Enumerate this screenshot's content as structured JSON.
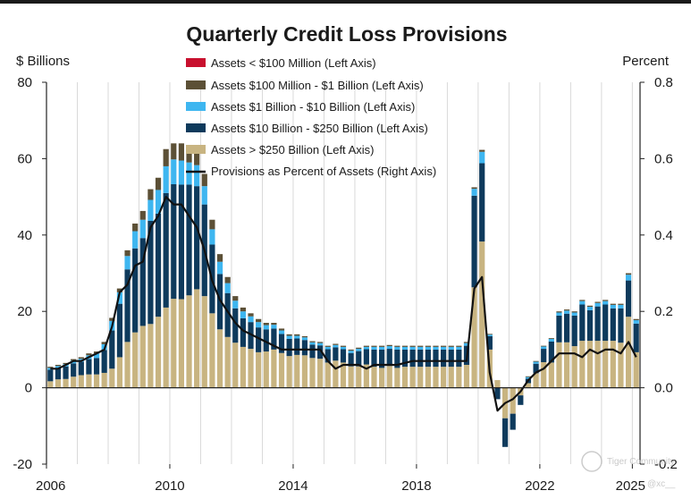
{
  "chart_data": {
    "type": "bar",
    "stacked": true,
    "title": "Quarterly Credit Loss Provisions",
    "ylabel_left": "$ Billions",
    "ylabel_right": "Percent",
    "ylim_left": [
      -20,
      80
    ],
    "ylim_right": [
      -0.2,
      0.8
    ],
    "yticks_left": [
      "80",
      "60",
      "40",
      "20",
      "0",
      "-20"
    ],
    "yticks_right": [
      "0.8",
      "0.6",
      "0.4",
      "0.2",
      "0.0",
      "-0.2"
    ],
    "xticks": [
      "2006",
      "2010",
      "2014",
      "2018",
      "2022",
      "2025"
    ],
    "x_start": "2006 Q1",
    "x_end": "2025 Q1",
    "legend_position": "top-center",
    "colors": {
      "lt100m": "#c8102e",
      "100m_1b": "#5c5036",
      "1b_10b": "#3eb6f0",
      "10b_250b": "#0e3a5c",
      "gt250b": "#c8b481",
      "line": "#111111",
      "grid": "#d9d9d9"
    },
    "series": [
      {
        "key": "lt100m",
        "name": "Assets < $100 Million (Left Axis)",
        "values": [
          0,
          0,
          0,
          0,
          0,
          0,
          0,
          0,
          0,
          0,
          0,
          0,
          0,
          0,
          0,
          0,
          0,
          0,
          0,
          0,
          0,
          0,
          0,
          0,
          0,
          0,
          0,
          0,
          0,
          0,
          0,
          0,
          0,
          0,
          0,
          0,
          0,
          0,
          0,
          0,
          0,
          0,
          0,
          0,
          0,
          0,
          0,
          0,
          0,
          0,
          0,
          0,
          0,
          0,
          0,
          0,
          0,
          0,
          0,
          0,
          0,
          0,
          0,
          0,
          0,
          0,
          0,
          0,
          0,
          0,
          0,
          0,
          0,
          0,
          0,
          0,
          0
        ]
      },
      {
        "key": "100m_1b",
        "name": "Assets  $100 Million - $1 Billion (Left Axis)",
        "values": [
          0.3,
          0.3,
          0.3,
          0.4,
          0.4,
          0.5,
          0.5,
          0.6,
          0.8,
          1,
          1.5,
          2,
          2.3,
          2.8,
          3.2,
          4.5,
          4.2,
          4.5,
          4,
          3.7,
          3.2,
          2.5,
          2,
          1.6,
          1.2,
          1,
          0.8,
          0.8,
          0.6,
          0.5,
          0.5,
          0.4,
          0.4,
          0.3,
          0.3,
          0.3,
          0.3,
          0.3,
          0.3,
          0.3,
          0.3,
          0.3,
          0.3,
          0.3,
          0.3,
          0.3,
          0.3,
          0.3,
          0.3,
          0.3,
          0.3,
          0.3,
          0.3,
          0.3,
          0.3,
          0.4,
          0.5,
          0.2,
          0,
          0,
          0,
          0,
          0.2,
          0.2,
          0.2,
          0.2,
          0.3,
          0.3,
          0.3,
          0.3,
          0.3,
          0.3,
          0.3,
          0.3,
          0.3,
          0.4,
          0.3
        ]
      },
      {
        "key": "1b_10b",
        "name": "Assets  $1 Billion - $10 Billion (Left Axis)",
        "values": [
          0.5,
          0.5,
          0.6,
          0.7,
          0.8,
          1,
          1.2,
          1.5,
          2.5,
          3,
          3.5,
          4.5,
          4.8,
          5.5,
          6.2,
          7,
          6.5,
          6.3,
          5.8,
          5.5,
          4.8,
          4,
          3.2,
          2.6,
          2,
          1.8,
          1.5,
          1.4,
          1.1,
          1,
          0.9,
          0.8,
          0.7,
          0.7,
          0.6,
          0.6,
          0.6,
          0.6,
          0.6,
          0.6,
          0.6,
          0.6,
          0.7,
          0.7,
          0.7,
          0.7,
          0.7,
          0.7,
          0.7,
          0.7,
          0.7,
          0.7,
          0.7,
          0.7,
          0.7,
          1.8,
          3,
          0.4,
          0,
          0,
          0,
          0,
          0.4,
          0.5,
          0.6,
          0.7,
          0.8,
          0.8,
          0.8,
          0.9,
          0.9,
          0.9,
          0.9,
          0.9,
          0.9,
          1.5,
          0.9
        ]
      },
      {
        "key": "10b_250b",
        "name": "Assets  $10 Billion - $250 Billion (Left Axis)",
        "values": [
          3,
          3,
          3.3,
          3.5,
          3.5,
          4,
          4.3,
          6,
          10,
          14,
          19,
          22,
          23,
          27,
          27,
          30,
          30,
          30,
          29,
          27,
          24,
          18,
          14.5,
          11.5,
          9,
          7.5,
          7,
          6.5,
          5.8,
          5.5,
          5,
          4.5,
          4.3,
          4,
          3.5,
          3.5,
          3.5,
          3.5,
          3.5,
          3.5,
          4,
          4,
          4.5,
          4.8,
          4.5,
          4.8,
          4.5,
          4.5,
          4.5,
          4.5,
          4.5,
          4.5,
          4.5,
          4.5,
          5,
          24,
          20.5,
          3.5,
          -3,
          -7.5,
          -4.2,
          -2.5,
          1.2,
          2.5,
          3.5,
          5.5,
          7,
          7.5,
          8,
          9.5,
          8,
          9,
          9.5,
          8.5,
          9,
          9.5,
          7.5
        ]
      },
      {
        "key": "gt250b",
        "name": "Assets > $250 Billion (Left Axis)",
        "values": [
          1.7,
          2.2,
          2.3,
          2.9,
          3.3,
          3.5,
          3.5,
          3.9,
          5,
          8,
          12,
          14.5,
          16.2,
          16.7,
          18.6,
          21,
          23.3,
          23.2,
          24.2,
          25.8,
          24,
          19.5,
          15.3,
          13.3,
          11.8,
          10.7,
          10.2,
          9.3,
          9.5,
          10,
          9.1,
          8.3,
          8.6,
          8.5,
          7.8,
          7.6,
          6.6,
          7.1,
          6.6,
          5.6,
          5.6,
          6.1,
          5.5,
          5.2,
          5.7,
          5.2,
          5.5,
          5.5,
          5.5,
          5.5,
          5.5,
          5.5,
          5.5,
          5.5,
          6,
          26.3,
          38.3,
          10,
          2,
          -8,
          -6.8,
          -2,
          1.2,
          3.8,
          6.7,
          6.6,
          11.9,
          11.9,
          10.9,
          12.3,
          12.3,
          12.3,
          12.3,
          12.3,
          11.8,
          18.6,
          9.3
        ]
      }
    ],
    "totals": [
      5.5,
      6,
      6.5,
      7.5,
      8,
      9,
      9.5,
      12,
      18.3,
      26,
      36,
      43,
      46.3,
      52,
      55,
      62.5,
      64,
      64,
      63,
      62,
      56,
      44,
      35,
      29,
      24,
      21,
      19.5,
      18,
      17,
      17,
      15.5,
      14,
      14,
      13.5,
      12.2,
      12,
      11,
      11.5,
      11,
      10,
      10.5,
      11,
      11,
      11,
      11.2,
      11,
      11,
      11,
      11,
      11,
      11,
      11,
      11,
      11,
      12,
      52.5,
      62.3,
      14.1,
      -1,
      -15.5,
      -11,
      -4.5,
      3,
      7,
      11,
      13,
      20,
      20.5,
      20,
      23,
      21.5,
      22.5,
      23,
      22,
      22,
      30,
      18
    ],
    "line": {
      "name": "Provisions as Percent of Assets (Right Axis)",
      "values": [
        0.05,
        0.05,
        0.06,
        0.07,
        0.07,
        0.08,
        0.09,
        0.1,
        0.16,
        0.25,
        0.27,
        0.32,
        0.33,
        0.42,
        0.45,
        0.5,
        0.48,
        0.48,
        0.45,
        0.42,
        0.36,
        0.28,
        0.23,
        0.2,
        0.17,
        0.15,
        0.14,
        0.13,
        0.12,
        0.11,
        0.1,
        0.1,
        0.1,
        0.1,
        0.1,
        0.1,
        0.07,
        0.05,
        0.06,
        0.06,
        0.06,
        0.05,
        0.06,
        0.06,
        0.06,
        0.06,
        0.065,
        0.07,
        0.07,
        0.07,
        0.07,
        0.07,
        0.07,
        0.07,
        0.07,
        0.26,
        0.29,
        0.04,
        -0.06,
        -0.04,
        -0.03,
        -0.01,
        0.02,
        0.04,
        0.05,
        0.07,
        0.09,
        0.09,
        0.09,
        0.08,
        0.1,
        0.09,
        0.1,
        0.1,
        0.09,
        0.12,
        0.08
      ]
    }
  },
  "watermark": {
    "text": "Tiger Community",
    "handle": "@xc__"
  }
}
